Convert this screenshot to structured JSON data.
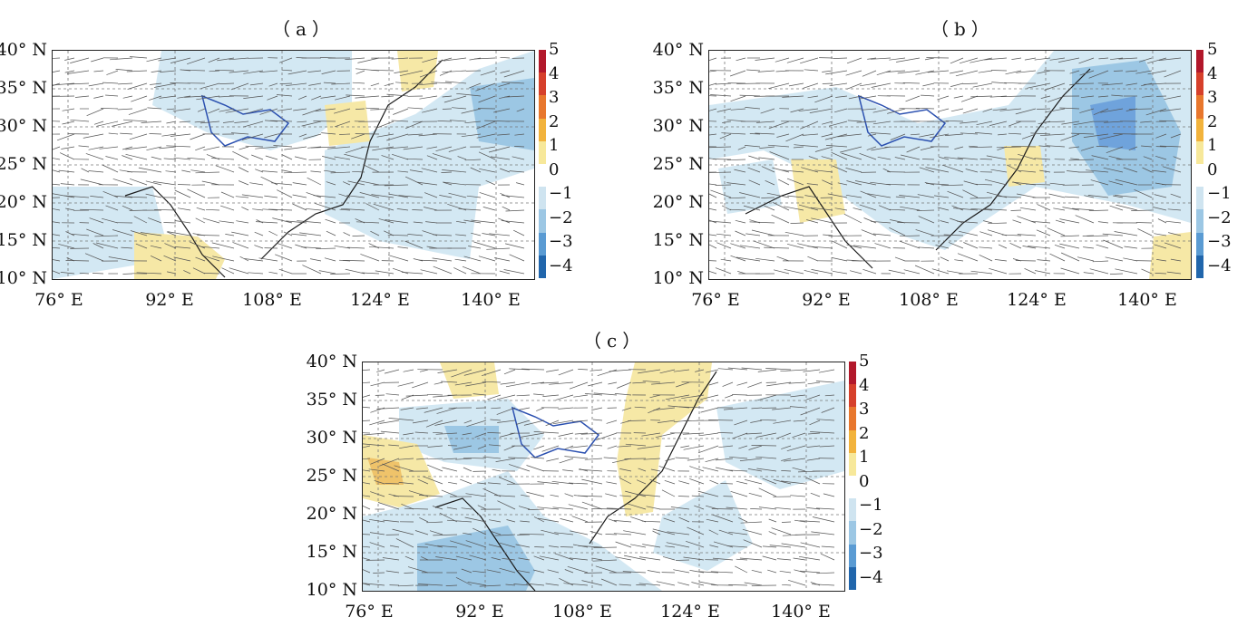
{
  "panels": [
    {
      "id": "a",
      "title": "（a）"
    },
    {
      "id": "b",
      "title": "（b）"
    },
    {
      "id": "c",
      "title": "（c）"
    }
  ],
  "lat_ticks": [
    "40° N",
    "35° N",
    "30° N",
    "25° N",
    "20° N",
    "15° N",
    "10° N"
  ],
  "lon_ticks": [
    "76° E",
    "92° E",
    "108° E",
    "124° E",
    "140° E"
  ],
  "colorbar": {
    "labels": [
      "5",
      "4",
      "3",
      "2",
      "1",
      "0",
      "−1",
      "−2",
      "−3",
      "−4"
    ],
    "colors": [
      "#b2182b",
      "#d6402b",
      "#e8772d",
      "#f2b33c",
      "#f7e89a",
      "#ffffff",
      "#cfe4f0",
      "#9cc7e4",
      "#5a9bd3",
      "#2166ac"
    ]
  },
  "colors": {
    "light_blue": "#d3e8f3",
    "mid_blue": "#a6cbe8",
    "dark_blue": "#6fa3dc",
    "yellow": "#f6e8a6",
    "orange": "#efc36a",
    "coast": "#1a1a1a",
    "region_outline": "#2b50b0",
    "grid": "#777777"
  }
}
